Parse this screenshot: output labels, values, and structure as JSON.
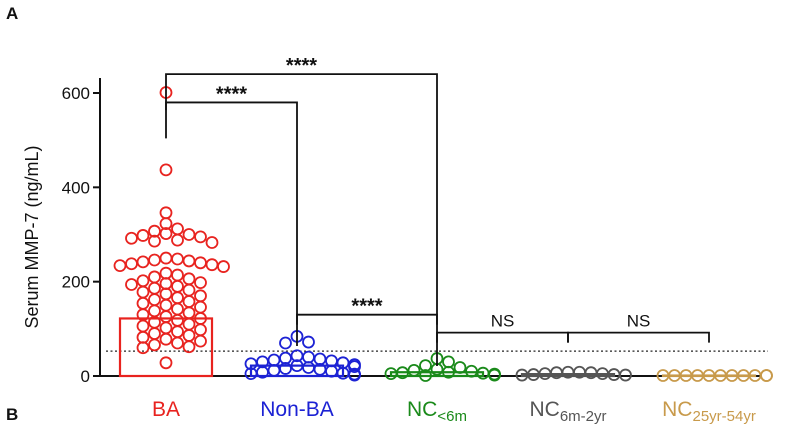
{
  "panel_labels": {
    "top": "A",
    "bottom": "B"
  },
  "colors": {
    "BA": "#e8231f",
    "Non-BA": "#1c22d4",
    "NC<6m": "#1a8a1a",
    "NC6m-2yr": "#555555",
    "NC25yr-54yr": "#c89a4b",
    "axis": "#111111"
  },
  "chart_data": {
    "type": "scatter",
    "title": "",
    "xlabel": "",
    "ylabel": "Serum MMP-7 (ng/mL)",
    "ylim": [
      0,
      650
    ],
    "yticks": [
      0,
      200,
      400,
      600
    ],
    "cutoff": 52.8,
    "categories": [
      {
        "key": "BA",
        "main": "BA",
        "sub": "",
        "color": "#e8231f",
        "bar": 122,
        "values": [
          601,
          437,
          346,
          323,
          312,
          307,
          302,
          300,
          298,
          295,
          292,
          288,
          286,
          283,
          250,
          248,
          246,
          244,
          242,
          240,
          238,
          236,
          234,
          232,
          218,
          214,
          210,
          206,
          202,
          198,
          196,
          194,
          190,
          186,
          182,
          178,
          174,
          170,
          166,
          162,
          158,
          154,
          150,
          146,
          142,
          138,
          134,
          130,
          126,
          122,
          118,
          114,
          110,
          106,
          102,
          98,
          94,
          90,
          86,
          82,
          78,
          74,
          70,
          66,
          62,
          60,
          28
        ]
      },
      {
        "key": "Non-BA",
        "main": "Non-BA",
        "sub": "",
        "color": "#1c22d4",
        "bar": 22,
        "values": [
          84,
          72,
          70,
          43,
          40,
          38,
          36,
          34,
          32,
          30,
          28,
          26,
          24,
          22,
          20,
          18,
          16,
          14,
          12,
          10,
          8,
          6,
          5,
          4,
          3,
          2
        ]
      },
      {
        "key": "NC<6m",
        "main": "NC",
        "sub": "<6m",
        "color": "#1a8a1a",
        "bar": 8,
        "values": [
          37,
          30,
          22,
          18,
          14,
          12,
          10,
          8,
          7,
          6,
          5,
          4,
          3,
          2,
          1
        ]
      },
      {
        "key": "NC6m-2yr",
        "main": "NC",
        "sub": "6m-2yr",
        "color": "#555555",
        "bar": 4,
        "values": [
          8,
          7,
          5,
          3,
          2,
          2,
          3,
          5,
          7,
          8
        ]
      },
      {
        "key": "NC25yr-54yr",
        "main": "NC",
        "sub": "25yr-54yr",
        "color": "#c89a4b",
        "bar": 1,
        "values": [
          1,
          1,
          1,
          1,
          1,
          1,
          1,
          1,
          1,
          1,
          1
        ]
      }
    ],
    "comparisons": [
      {
        "from": 0,
        "to": 2,
        "label": "****",
        "level": 640
      },
      {
        "from": 0,
        "to": 1,
        "label": "****",
        "level": 580
      },
      {
        "from": 1,
        "to": 2,
        "label": "****",
        "level": 130
      },
      {
        "from": 2,
        "to": 3,
        "label": "NS",
        "level": 92
      },
      {
        "from": 3,
        "to": 4,
        "label": "NS",
        "level": 92
      }
    ]
  }
}
